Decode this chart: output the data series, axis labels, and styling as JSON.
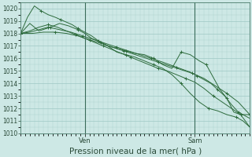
{
  "background_color": "#cde8e5",
  "grid_color": "#9ec8c4",
  "line_color": "#2d6b3c",
  "xlabel": "Pression niveau de la mer( hPa )",
  "ylim": [
    1010,
    1020.5
  ],
  "yticks": [
    1010,
    1011,
    1012,
    1013,
    1014,
    1015,
    1016,
    1017,
    1018,
    1019,
    1020
  ],
  "vline_positions": [
    0.28,
    0.76
  ],
  "vline_labels": [
    "Ven",
    "Sam"
  ],
  "tick_fontsize": 5.5,
  "xlabel_fontsize": 7.5,
  "fig_width": 3.2,
  "fig_height": 2.0,
  "dpi": 100,
  "series": [
    {
      "x": [
        0.0,
        0.03,
        0.06,
        0.09,
        0.12,
        0.15,
        0.175,
        0.2,
        0.225,
        0.25,
        0.28,
        0.31,
        0.34,
        0.38,
        0.42,
        0.46,
        0.5,
        0.54,
        0.58,
        0.62,
        0.66,
        0.7,
        0.74,
        0.78,
        0.82,
        0.86,
        0.9,
        0.94,
        0.97,
        1.0
      ],
      "y": [
        1018.0,
        1019.3,
        1020.2,
        1019.8,
        1019.5,
        1019.3,
        1019.1,
        1018.9,
        1018.7,
        1018.4,
        1018.1,
        1017.8,
        1017.4,
        1017.0,
        1016.5,
        1016.3,
        1016.1,
        1015.8,
        1015.5,
        1015.2,
        1014.7,
        1014.0,
        1013.2,
        1012.5,
        1012.0,
        1011.8,
        1011.5,
        1011.3,
        1011.0,
        1010.5
      ],
      "markevery": 3
    },
    {
      "x": [
        0.0,
        0.04,
        0.08,
        0.13,
        0.17,
        0.21,
        0.25,
        0.28,
        0.31,
        0.35,
        0.38,
        0.42,
        0.46,
        0.5,
        0.54,
        0.58,
        0.62,
        0.66,
        0.7,
        0.74,
        0.78,
        0.81,
        0.84,
        0.87,
        0.9,
        0.93,
        0.96,
        1.0
      ],
      "y": [
        1018.0,
        1018.8,
        1018.2,
        1018.5,
        1018.8,
        1018.6,
        1018.3,
        1018.0,
        1017.6,
        1017.3,
        1017.0,
        1016.8,
        1016.6,
        1016.4,
        1016.3,
        1016.0,
        1015.5,
        1015.2,
        1016.5,
        1016.3,
        1015.8,
        1015.5,
        1014.5,
        1013.5,
        1012.8,
        1011.7,
        1011.5,
        1011.5
      ],
      "markevery": 3
    },
    {
      "x": [
        0.0,
        0.04,
        0.08,
        0.12,
        0.16,
        0.2,
        0.24,
        0.28,
        0.32,
        0.36,
        0.4,
        0.44,
        0.48,
        0.52,
        0.56,
        0.6,
        0.64,
        0.68,
        0.72,
        0.76,
        0.8,
        0.84,
        0.88,
        0.92,
        0.96,
        1.0
      ],
      "y": [
        1018.0,
        1018.2,
        1018.5,
        1018.7,
        1018.5,
        1018.2,
        1017.9,
        1017.6,
        1017.3,
        1017.0,
        1016.7,
        1016.4,
        1016.1,
        1015.8,
        1015.5,
        1015.2,
        1015.0,
        1014.7,
        1014.4,
        1014.1,
        1013.6,
        1013.0,
        1012.5,
        1012.0,
        1011.5,
        1010.5
      ],
      "markevery": 3
    },
    {
      "x": [
        0.0,
        0.04,
        0.08,
        0.12,
        0.17,
        0.22,
        0.27,
        0.32,
        0.37,
        0.42,
        0.47,
        0.52,
        0.57,
        0.62,
        0.65,
        0.68,
        0.71,
        0.74,
        0.77,
        0.8,
        0.83,
        0.86,
        0.89,
        0.92,
        0.95,
        1.0
      ],
      "y": [
        1018.0,
        1018.1,
        1018.3,
        1018.5,
        1018.3,
        1018.1,
        1017.8,
        1017.5,
        1017.2,
        1016.9,
        1016.6,
        1016.3,
        1016.0,
        1015.7,
        1015.5,
        1015.3,
        1015.1,
        1014.9,
        1014.6,
        1014.3,
        1014.0,
        1013.5,
        1013.0,
        1012.3,
        1011.7,
        1011.2
      ],
      "markevery": 3
    },
    {
      "x": [
        0.0,
        0.05,
        0.1,
        0.15,
        0.2,
        0.25,
        0.3,
        0.35,
        0.4,
        0.45,
        0.5,
        0.55,
        0.6,
        0.65,
        0.7,
        0.75,
        0.8,
        0.85,
        0.9,
        0.95,
        1.0
      ],
      "y": [
        1018.0,
        1018.0,
        1018.1,
        1018.1,
        1018.0,
        1017.8,
        1017.5,
        1017.2,
        1016.9,
        1016.6,
        1016.3,
        1016.0,
        1015.7,
        1015.4,
        1015.1,
        1014.8,
        1014.4,
        1013.8,
        1013.2,
        1012.5,
        1011.5
      ],
      "markevery": 3
    }
  ]
}
